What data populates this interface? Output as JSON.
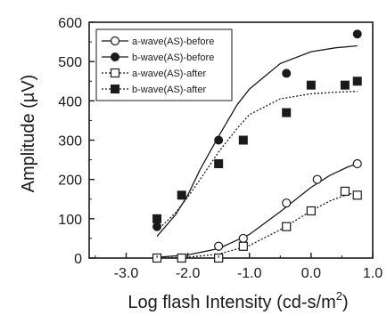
{
  "chart_data": {
    "type": "scatter",
    "title": "",
    "xlabel": "Log flash Intensity (cd-s/m",
    "xlabel_sup": "2",
    "xlabel_end": ")",
    "ylabel": "Amplitude (µV)",
    "xlim": [
      -3.6,
      1.0
    ],
    "ylim": [
      0,
      600
    ],
    "x_ticks": [
      -3.0,
      -2.0,
      -1.0,
      0.0,
      1.0
    ],
    "x_tick_labels": [
      "-3.0",
      "-2.0",
      "-1.0",
      "0.0",
      "1.0"
    ],
    "y_ticks": [
      0,
      100,
      200,
      300,
      400,
      500,
      600
    ],
    "y_tick_labels": [
      "0",
      "100",
      "200",
      "300",
      "400",
      "500",
      "600"
    ],
    "grid": false,
    "legend_position": "top-left",
    "series": [
      {
        "name": "a-wave(AS)-before",
        "marker": "open-circle",
        "x": [
          -2.5,
          -2.1,
          -1.5,
          -1.1,
          -0.4,
          0.1,
          0.75
        ],
        "y": [
          0,
          0,
          30,
          50,
          140,
          200,
          240
        ]
      },
      {
        "name": "b-wave(AS)-before",
        "marker": "filled-circle",
        "x": [
          -2.5,
          -1.5,
          -0.4,
          0.75
        ],
        "y": [
          80,
          300,
          470,
          570
        ]
      },
      {
        "name": "a-wave(AS)-after",
        "marker": "open-square",
        "x": [
          -2.5,
          -2.1,
          -1.5,
          -1.1,
          -0.4,
          0.0,
          0.55,
          0.75
        ],
        "y": [
          0,
          0,
          0,
          30,
          80,
          120,
          170,
          160
        ]
      },
      {
        "name": "b-wave(AS)-after",
        "marker": "filled-square",
        "x": [
          -2.5,
          -2.1,
          -1.5,
          -1.1,
          -0.4,
          0.0,
          0.55,
          0.75
        ],
        "y": [
          100,
          160,
          240,
          300,
          370,
          440,
          440,
          450
        ]
      }
    ],
    "fits": [
      {
        "series": "a-wave(AS)-before",
        "line_style": "solid",
        "x": [
          -2.5,
          -2.0,
          -1.5,
          -1.0,
          -0.5,
          0.0,
          0.3,
          0.6,
          0.75
        ],
        "y": [
          2,
          8,
          24,
          60,
          118,
          180,
          210,
          232,
          240
        ]
      },
      {
        "series": "b-wave(AS)-before",
        "line_style": "solid",
        "x": [
          -2.5,
          -2.2,
          -2.0,
          -1.8,
          -1.5,
          -1.2,
          -1.0,
          -0.5,
          0.0,
          0.4,
          0.75
        ],
        "y": [
          55,
          110,
          160,
          225,
          310,
          390,
          430,
          495,
          525,
          535,
          540
        ]
      },
      {
        "series": "a-wave(AS)-after",
        "line_style": "dotted",
        "x": [
          -2.5,
          -2.0,
          -1.5,
          -1.0,
          -0.5,
          0.0,
          0.3,
          0.6,
          0.75
        ],
        "y": [
          0,
          2,
          10,
          32,
          72,
          120,
          145,
          162,
          168
        ]
      },
      {
        "series": "b-wave(AS)-after",
        "line_style": "dotted",
        "x": [
          -2.5,
          -2.2,
          -2.0,
          -1.8,
          -1.5,
          -1.2,
          -1.0,
          -0.5,
          0.0,
          0.4,
          0.75
        ],
        "y": [
          70,
          115,
          155,
          200,
          270,
          330,
          365,
          405,
          418,
          422,
          424
        ]
      }
    ]
  }
}
